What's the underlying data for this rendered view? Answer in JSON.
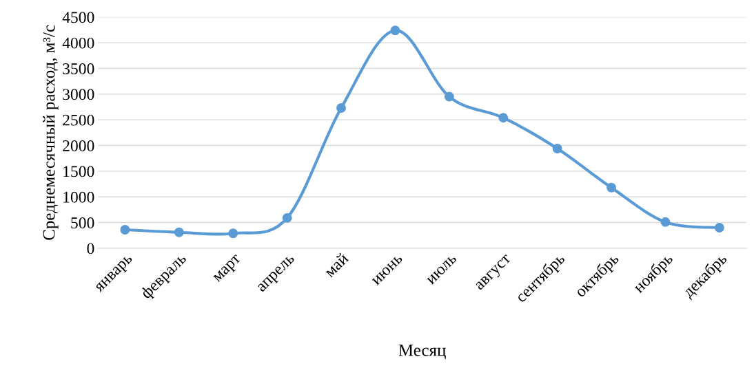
{
  "chart_data": {
    "type": "line",
    "xlabel": "Месяц",
    "ylabel": "Среднемесячный расход, м³/с",
    "categories": [
      "январь",
      "февраль",
      "март",
      "апрель",
      "май",
      "июнь",
      "июль",
      "август",
      "сентябрь",
      "октябрь",
      "ноябрь",
      "декабрь"
    ],
    "series": [
      {
        "color": "#5b9bd5",
        "values": [
          360,
          310,
          290,
          590,
          2730,
          4240,
          2950,
          2540,
          1940,
          1180,
          510,
          400
        ]
      }
    ],
    "ylim": [
      0,
      4500
    ],
    "yticks": [
      0,
      500,
      1000,
      1500,
      2000,
      2500,
      3000,
      3500,
      4000,
      4500
    ],
    "grid": "y",
    "marker": "circle",
    "line_style": "solid"
  }
}
